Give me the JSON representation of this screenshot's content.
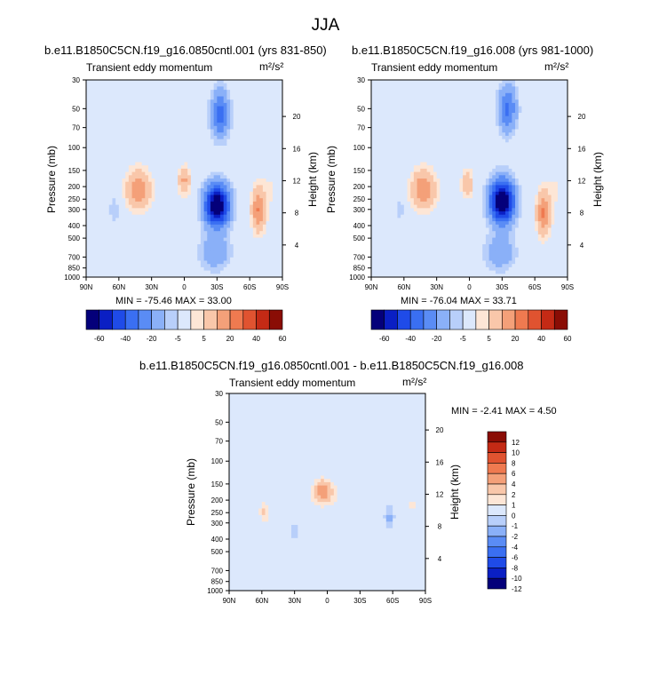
{
  "page": {
    "title": "JJA"
  },
  "chart_data": [
    {
      "type": "heatmap",
      "id": "left",
      "title": "b.e11.B1850C5CN.f19_g16.0850cntl.001 (yrs 831-850)",
      "subtitle": "Transient eddy momentum",
      "units": "m²/s²",
      "xlabel": "",
      "ylabel": "Pressure (mb)",
      "y2label": "Height (km)",
      "x_ticks": [
        "90N",
        "60N",
        "30N",
        "0",
        "30S",
        "60S",
        "90S"
      ],
      "pressure_ticks": [
        30,
        50,
        70,
        100,
        150,
        200,
        250,
        300,
        400,
        500,
        700,
        850,
        1000
      ],
      "height_ticks": [
        4,
        8,
        12,
        16,
        20
      ],
      "stats": "MIN = -75.46  MAX =  33.00",
      "min": -75.46,
      "max": 33.0,
      "contour_levels": [
        -60,
        -50,
        -40,
        -30,
        -20,
        -10,
        -5,
        0,
        5,
        10,
        20,
        30,
        40,
        50,
        60
      ],
      "colorbar_labels": [
        "-60",
        "-40",
        "-20",
        "-5",
        "5",
        "20",
        "40",
        "60"
      ],
      "features": [
        {
          "lat": -30,
          "p": 280,
          "value": -75,
          "wlat": 8,
          "wlogp": 0.26
        },
        {
          "lat": -33,
          "p": 55,
          "value": -34,
          "wlat": 6,
          "wlogp": 0.3
        },
        {
          "lat": -28,
          "p": 650,
          "value": -18,
          "wlat": 10,
          "wlogp": 0.22
        },
        {
          "lat": -68,
          "p": 300,
          "value": 30,
          "wlat": 4.5,
          "wlogp": 0.28
        },
        {
          "lat": 42,
          "p": 210,
          "value": 28,
          "wlat": 8,
          "wlogp": 0.25
        },
        {
          "lat": 0,
          "p": 180,
          "value": 22,
          "wlat": 4,
          "wlogp": 0.18
        },
        {
          "lat": 64,
          "p": 300,
          "value": -9,
          "wlat": 3.5,
          "wlogp": 0.18
        },
        {
          "lat": 15,
          "p": 120,
          "value": -4,
          "wlat": 5,
          "wlogp": 0.4
        },
        {
          "lat": 72,
          "p": 60,
          "value": 3,
          "wlat": 10,
          "wlogp": 0.5
        },
        {
          "lat": -80,
          "p": 200,
          "value": 5,
          "wlat": 6,
          "wlogp": 0.4
        }
      ]
    },
    {
      "type": "heatmap",
      "id": "right",
      "title": "b.e11.B1850C5CN.f19_g16.008 (yrs 981-1000)",
      "subtitle": "Transient eddy momentum",
      "units": "m²/s²",
      "xlabel": "",
      "ylabel": "Pressure (mb)",
      "y2label": "Height (km)",
      "x_ticks": [
        "90N",
        "60N",
        "30N",
        "0",
        "30S",
        "60S",
        "90S"
      ],
      "pressure_ticks": [
        30,
        50,
        70,
        100,
        150,
        200,
        250,
        300,
        400,
        500,
        700,
        850,
        1000
      ],
      "height_ticks": [
        4,
        8,
        12,
        16,
        20
      ],
      "stats": "MIN = -76.04  MAX =  33.71",
      "min": -76.04,
      "max": 33.71,
      "contour_levels": [
        -60,
        -50,
        -40,
        -30,
        -20,
        -10,
        -5,
        0,
        5,
        10,
        20,
        30,
        40,
        50,
        60
      ],
      "colorbar_labels": [
        "-60",
        "-40",
        "-20",
        "-5",
        "5",
        "20",
        "40",
        "60"
      ],
      "features": [
        {
          "lat": -30,
          "p": 260,
          "value": -76,
          "wlat": 8,
          "wlogp": 0.27
        },
        {
          "lat": -35,
          "p": 50,
          "value": -32,
          "wlat": 6,
          "wlogp": 0.3
        },
        {
          "lat": -28,
          "p": 650,
          "value": -18,
          "wlat": 10,
          "wlogp": 0.22
        },
        {
          "lat": -68,
          "p": 320,
          "value": 31,
          "wlat": 4.5,
          "wlogp": 0.28
        },
        {
          "lat": 42,
          "p": 210,
          "value": 29,
          "wlat": 8,
          "wlogp": 0.25
        },
        {
          "lat": 2,
          "p": 190,
          "value": 18,
          "wlat": 4,
          "wlogp": 0.18
        },
        {
          "lat": 64,
          "p": 300,
          "value": -8,
          "wlat": 3.5,
          "wlogp": 0.18
        },
        {
          "lat": 15,
          "p": 120,
          "value": -4,
          "wlat": 5,
          "wlogp": 0.4
        },
        {
          "lat": 72,
          "p": 60,
          "value": 3,
          "wlat": 10,
          "wlogp": 0.5
        },
        {
          "lat": -80,
          "p": 200,
          "value": 5,
          "wlat": 6,
          "wlogp": 0.4
        }
      ]
    },
    {
      "type": "heatmap",
      "id": "diff",
      "title": "b.e11.B1850C5CN.f19_g16.0850cntl.001 - b.e11.B1850C5CN.f19_g16.008",
      "subtitle": "Transient eddy momentum",
      "units": "m²/s²",
      "xlabel": "",
      "ylabel": "Pressure (mb)",
      "y2label": "Height (km)",
      "x_ticks": [
        "90N",
        "60N",
        "30N",
        "0",
        "30S",
        "60S",
        "90S"
      ],
      "pressure_ticks": [
        30,
        50,
        70,
        100,
        150,
        200,
        250,
        300,
        400,
        500,
        700,
        850,
        1000
      ],
      "height_ticks": [
        4,
        8,
        12,
        16,
        20
      ],
      "stats": "MIN = -2.41  MAX =  4.50",
      "min": -2.41,
      "max": 4.5,
      "contour_levels": [
        -12,
        -10,
        -8,
        -6,
        -4,
        -2,
        -1,
        0,
        1,
        2,
        4,
        6,
        8,
        10,
        12
      ],
      "colorbar_labels": [
        "12",
        "10",
        "8",
        "6",
        "4",
        "2",
        "1",
        "0",
        "-1",
        "-2",
        "-4",
        "-6",
        "-8",
        "-10",
        "-12"
      ],
      "features": [
        {
          "lat": 4,
          "p": 170,
          "value": 4.5,
          "wlat": 5,
          "wlogp": 0.12
        },
        {
          "lat": 2,
          "p": 180,
          "value": 1.4,
          "wlat": 12,
          "wlogp": 0.2
        },
        {
          "lat": 58,
          "p": 250,
          "value": 2.2,
          "wlat": 3,
          "wlogp": 0.15
        },
        {
          "lat": -57,
          "p": 270,
          "value": -2.4,
          "wlat": 3.5,
          "wlogp": 0.15
        },
        {
          "lat": -78,
          "p": 220,
          "value": 1.3,
          "wlat": 2.5,
          "wlogp": 0.15
        },
        {
          "lat": 30,
          "p": 350,
          "value": -1.1,
          "wlat": 8,
          "wlogp": 0.35
        },
        {
          "lat": 60,
          "p": 60,
          "value": -1.0,
          "wlat": 10,
          "wlogp": 0.35
        },
        {
          "lat": -40,
          "p": 45,
          "value": 0.8,
          "wlat": 12,
          "wlogp": 0.4
        }
      ]
    }
  ]
}
